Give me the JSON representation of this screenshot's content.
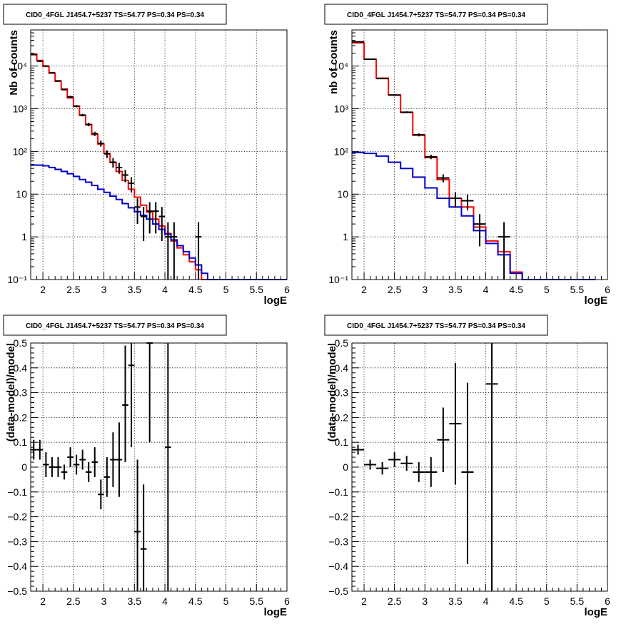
{
  "chart_data": [
    {
      "id": "top-left",
      "type": "line",
      "title": "CID0_4FGL J1454.7+5237 TS=54.77 PS=0.34 PS=0.34",
      "xlabel": "logE",
      "ylabel": "Nb of counts",
      "xlim": [
        1.8,
        6.0
      ],
      "ylim": [
        0.1,
        70000
      ],
      "yscale": "log",
      "grid": true,
      "xticks": [
        2,
        2.5,
        3,
        3.5,
        4,
        4.5,
        5,
        5.5,
        6
      ],
      "xtick_labels": [
        "2",
        "2.5",
        "3",
        "3.5",
        "4",
        "4.5",
        "5",
        "5.5",
        "6"
      ],
      "yticks": [
        0.1,
        1,
        10,
        100,
        1000,
        10000
      ],
      "ytick_labels": [
        "10⁻¹",
        "1",
        "10",
        "10²",
        "10³",
        "10⁴"
      ],
      "bin_edges": [
        1.8,
        1.9,
        2.0,
        2.1,
        2.2,
        2.3,
        2.4,
        2.5,
        2.6,
        2.7,
        2.8,
        2.9,
        3.0,
        3.1,
        3.2,
        3.3,
        3.4,
        3.5,
        3.6,
        3.7,
        3.8,
        3.9,
        4.0,
        4.1,
        4.2,
        4.3,
        4.4,
        4.5,
        4.6,
        4.7,
        4.8,
        4.9,
        5.0,
        5.1,
        5.2,
        5.3,
        5.4,
        5.5,
        5.6,
        5.7,
        5.8,
        5.9,
        6.0
      ],
      "series": [
        {
          "color": "#ff0000",
          "values": [
            19000,
            13500,
            9800,
            6800,
            4400,
            2900,
            1800,
            1150,
            700,
            420,
            250,
            150,
            90,
            55,
            34,
            21,
            13,
            8.5,
            5.5,
            3.8,
            2.6,
            1.8,
            1.2,
            0.8,
            0.55,
            0.38,
            0.26,
            0.17,
            0.1,
            0.1,
            0.1,
            0.1,
            0.1,
            0.1,
            0.1,
            0.1,
            0.1,
            0.1,
            0.1,
            0.1,
            0.1,
            0.1
          ]
        },
        {
          "color": "#0000cc",
          "values": [
            48,
            48,
            46,
            42,
            38,
            34,
            30,
            26,
            22,
            19,
            16,
            13,
            11,
            9,
            7.5,
            6,
            4.8,
            3.9,
            3.2,
            2.6,
            2.0,
            1.5,
            1.15,
            0.85,
            0.62,
            0.45,
            0.32,
            0.22,
            0.14,
            0.1,
            0.1,
            0.1,
            0.1,
            0.1,
            0.1,
            0.1,
            0.1,
            0.1,
            0.1,
            0.1,
            0.1,
            0.1
          ]
        }
      ],
      "points": [
        {
          "x": 1.85,
          "y": 18500,
          "xerr": 0.05,
          "ylo": 18000,
          "yhi": 19100
        },
        {
          "x": 1.95,
          "y": 13000,
          "xerr": 0.05,
          "ylo": 12600,
          "yhi": 13400
        },
        {
          "x": 2.05,
          "y": 10000,
          "xerr": 0.05,
          "ylo": 9700,
          "yhi": 10300
        },
        {
          "x": 2.15,
          "y": 7000,
          "xerr": 0.05,
          "ylo": 6800,
          "yhi": 7200
        },
        {
          "x": 2.25,
          "y": 4500,
          "xerr": 0.05,
          "ylo": 4350,
          "yhi": 4650
        },
        {
          "x": 2.35,
          "y": 2800,
          "xerr": 0.05,
          "ylo": 2700,
          "yhi": 2900
        },
        {
          "x": 2.45,
          "y": 1900,
          "xerr": 0.05,
          "ylo": 1800,
          "yhi": 2000
        },
        {
          "x": 2.55,
          "y": 1150,
          "xerr": 0.05,
          "ylo": 1080,
          "yhi": 1220
        },
        {
          "x": 2.65,
          "y": 710,
          "xerr": 0.05,
          "ylo": 660,
          "yhi": 760
        },
        {
          "x": 2.75,
          "y": 430,
          "xerr": 0.05,
          "ylo": 390,
          "yhi": 470
        },
        {
          "x": 2.85,
          "y": 260,
          "xerr": 0.05,
          "ylo": 230,
          "yhi": 290
        },
        {
          "x": 2.95,
          "y": 155,
          "xerr": 0.05,
          "ylo": 130,
          "yhi": 180
        },
        {
          "x": 3.05,
          "y": 88,
          "xerr": 0.05,
          "ylo": 70,
          "yhi": 106
        },
        {
          "x": 3.15,
          "y": 56,
          "xerr": 0.05,
          "ylo": 42,
          "yhi": 70
        },
        {
          "x": 3.25,
          "y": 42,
          "xerr": 0.05,
          "ylo": 30,
          "yhi": 54
        },
        {
          "x": 3.35,
          "y": 28,
          "xerr": 0.05,
          "ylo": 19,
          "yhi": 37
        },
        {
          "x": 3.45,
          "y": 18,
          "xerr": 0.05,
          "ylo": 11,
          "yhi": 25
        },
        {
          "x": 3.55,
          "y": 5,
          "xerr": 0.05,
          "ylo": 2,
          "yhi": 8
        },
        {
          "x": 3.65,
          "y": 3,
          "xerr": 0.05,
          "ylo": 0.8,
          "yhi": 5
        },
        {
          "x": 3.75,
          "y": 4,
          "xerr": 0.05,
          "ylo": 1.2,
          "yhi": 6.5
        },
        {
          "x": 3.85,
          "y": 4,
          "xerr": 0.05,
          "ylo": 1.2,
          "yhi": 6.5
        },
        {
          "x": 3.95,
          "y": 3,
          "xerr": 0.05,
          "ylo": 0.8,
          "yhi": 5
        },
        {
          "x": 4.05,
          "y": 1,
          "xerr": 0.05,
          "ylo": 0.1,
          "yhi": 2.2
        },
        {
          "x": 4.15,
          "y": 1,
          "xerr": 0.05,
          "ylo": 0.1,
          "yhi": 2.2
        },
        {
          "x": 4.55,
          "y": 1,
          "xerr": 0.05,
          "ylo": 0.1,
          "yhi": 2.2
        }
      ]
    },
    {
      "id": "top-right",
      "type": "line",
      "title": "CID0_4FGL J1454.7+5237 TS=54.77 PS=0.34 PS=0.34",
      "xlabel": "logE",
      "ylabel": "nb of counts",
      "xlim": [
        1.8,
        6.0
      ],
      "ylim": [
        0.1,
        70000
      ],
      "yscale": "log",
      "grid": true,
      "xticks": [
        2,
        2.5,
        3,
        3.5,
        4,
        4.5,
        5,
        5.5,
        6
      ],
      "xtick_labels": [
        "2",
        "2.5",
        "3",
        "3.5",
        "4",
        "4.5",
        "5",
        "5.5",
        "6"
      ],
      "yticks": [
        0.1,
        1,
        10,
        100,
        1000,
        10000
      ],
      "ytick_labels": [
        "10⁻¹",
        "1",
        "10",
        "10²",
        "10³",
        "10⁴"
      ],
      "bin_edges": [
        1.8,
        2.0,
        2.2,
        2.4,
        2.6,
        2.8,
        3.0,
        3.2,
        3.4,
        3.6,
        3.8,
        4.0,
        4.2,
        4.4,
        4.6,
        4.8,
        5.0,
        5.2,
        5.4,
        5.6,
        5.8,
        6.0
      ],
      "series": [
        {
          "color": "#ff0000",
          "values": [
            35000,
            14500,
            5200,
            2100,
            820,
            240,
            72,
            22,
            8,
            5,
            1.7,
            0.8,
            0.45,
            0.15,
            0.1,
            0.1,
            0.1,
            0.1,
            0.1,
            0.1
          ]
        },
        {
          "color": "#0000cc",
          "values": [
            95,
            90,
            78,
            56,
            40,
            25,
            14,
            8,
            5,
            3.1,
            1.4,
            0.7,
            0.38,
            0.14,
            0.1,
            0.1,
            0.1,
            0.1,
            0.1,
            0.1
          ]
        }
      ],
      "points": [
        {
          "x": 1.9,
          "y": 37000,
          "xerr": 0.1,
          "ylo": 36500,
          "yhi": 37500
        },
        {
          "x": 2.1,
          "y": 14500,
          "xerr": 0.1,
          "ylo": 14200,
          "yhi": 14800
        },
        {
          "x": 2.3,
          "y": 5100,
          "xerr": 0.1,
          "ylo": 4950,
          "yhi": 5250
        },
        {
          "x": 2.5,
          "y": 2100,
          "xerr": 0.1,
          "ylo": 2000,
          "yhi": 2200
        },
        {
          "x": 2.7,
          "y": 830,
          "xerr": 0.1,
          "ylo": 790,
          "yhi": 870
        },
        {
          "x": 2.9,
          "y": 245,
          "xerr": 0.1,
          "ylo": 225,
          "yhi": 265
        },
        {
          "x": 3.1,
          "y": 75,
          "xerr": 0.1,
          "ylo": 66,
          "yhi": 84
        },
        {
          "x": 3.3,
          "y": 24,
          "xerr": 0.1,
          "ylo": 19,
          "yhi": 29
        },
        {
          "x": 3.5,
          "y": 8,
          "xerr": 0.1,
          "ylo": 5,
          "yhi": 11
        },
        {
          "x": 3.7,
          "y": 7,
          "xerr": 0.1,
          "ylo": 4.2,
          "yhi": 9.8
        },
        {
          "x": 3.9,
          "y": 2,
          "xerr": 0.1,
          "ylo": 0.6,
          "yhi": 3.4
        },
        {
          "x": 4.3,
          "y": 1,
          "xerr": 0.1,
          "ylo": 0.1,
          "yhi": 2.2
        }
      ]
    },
    {
      "id": "bottom-left",
      "type": "scatter",
      "title": "CID0_4FGL J1454.7+5237 TS=54.77 PS=0.34 PS=0.34",
      "xlabel": "logE",
      "ylabel": "(data-model)/model",
      "xlim": [
        1.8,
        6.0
      ],
      "ylim": [
        -0.5,
        0.5
      ],
      "yscale": "linear",
      "grid": true,
      "xticks": [
        2,
        2.5,
        3,
        3.5,
        4,
        4.5,
        5,
        5.5,
        6
      ],
      "xtick_labels": [
        "2",
        "2.5",
        "3",
        "3.5",
        "4",
        "4.5",
        "5",
        "5.5",
        "6"
      ],
      "yticks": [
        -0.5,
        -0.4,
        -0.3,
        -0.2,
        -0.1,
        0,
        0.1,
        0.2,
        0.3,
        0.4,
        0.5
      ],
      "ytick_labels": [
        "−0.5",
        "−0.4",
        "−0.3",
        "−0.2",
        "−0.1",
        "0",
        "0.1",
        "0.2",
        "0.3",
        "0.4",
        "0.5"
      ],
      "points": [
        {
          "x": 1.85,
          "y": 0.07,
          "xerr": 0.05,
          "ylo": 0.03,
          "yhi": 0.11
        },
        {
          "x": 1.95,
          "y": 0.07,
          "xerr": 0.05,
          "ylo": 0.03,
          "yhi": 0.11
        },
        {
          "x": 2.05,
          "y": 0.01,
          "xerr": 0.05,
          "ylo": -0.04,
          "yhi": 0.06
        },
        {
          "x": 2.15,
          "y": 0.0,
          "xerr": 0.05,
          "ylo": -0.04,
          "yhi": 0.04
        },
        {
          "x": 2.25,
          "y": 0.0,
          "xerr": 0.05,
          "ylo": -0.04,
          "yhi": 0.04
        },
        {
          "x": 2.35,
          "y": -0.02,
          "xerr": 0.05,
          "ylo": -0.05,
          "yhi": 0.01
        },
        {
          "x": 2.45,
          "y": 0.04,
          "xerr": 0.05,
          "ylo": 0.0,
          "yhi": 0.08
        },
        {
          "x": 2.55,
          "y": 0.01,
          "xerr": 0.05,
          "ylo": -0.03,
          "yhi": 0.05
        },
        {
          "x": 2.65,
          "y": 0.03,
          "xerr": 0.05,
          "ylo": -0.01,
          "yhi": 0.07
        },
        {
          "x": 2.75,
          "y": -0.02,
          "xerr": 0.05,
          "ylo": -0.06,
          "yhi": 0.02
        },
        {
          "x": 2.85,
          "y": 0.02,
          "xerr": 0.05,
          "ylo": -0.04,
          "yhi": 0.08
        },
        {
          "x": 2.95,
          "y": -0.11,
          "xerr": 0.05,
          "ylo": -0.17,
          "yhi": -0.05
        },
        {
          "x": 3.05,
          "y": -0.04,
          "xerr": 0.05,
          "ylo": -0.12,
          "yhi": 0.04
        },
        {
          "x": 3.15,
          "y": 0.03,
          "xerr": 0.05,
          "ylo": -0.08,
          "yhi": 0.14
        },
        {
          "x": 3.25,
          "y": 0.03,
          "xerr": 0.05,
          "ylo": -0.12,
          "yhi": 0.18
        },
        {
          "x": 3.35,
          "y": 0.25,
          "xerr": 0.05,
          "ylo": 0.02,
          "yhi": 0.49
        },
        {
          "x": 3.45,
          "y": 0.41,
          "xerr": 0.05,
          "ylo": 0.08,
          "yhi": 0.5
        },
        {
          "x": 3.55,
          "y": -0.26,
          "xerr": 0.05,
          "ylo": -0.5,
          "yhi": 0.03
        },
        {
          "x": 3.65,
          "y": -0.33,
          "xerr": 0.05,
          "ylo": -0.5,
          "yhi": -0.07
        },
        {
          "x": 3.75,
          "y": 0.5,
          "xerr": 0.05,
          "ylo": 0.1,
          "yhi": 0.5
        },
        {
          "x": 4.05,
          "y": 0.08,
          "xerr": 0.05,
          "ylo": -0.5,
          "yhi": 0.5
        }
      ]
    },
    {
      "id": "bottom-right",
      "type": "scatter",
      "title": "CID0_4FGL J1454.7+5237 TS=54.77 PS=0.34 PS=0.34",
      "xlabel": "logE",
      "ylabel": "(data-model)/model",
      "xlim": [
        1.8,
        6.0
      ],
      "ylim": [
        -0.5,
        0.5
      ],
      "yscale": "linear",
      "grid": true,
      "xticks": [
        2,
        2.5,
        3,
        3.5,
        4,
        4.5,
        5,
        5.5,
        6
      ],
      "xtick_labels": [
        "2",
        "2.5",
        "3",
        "3.5",
        "4",
        "4.5",
        "5",
        "5.5",
        "6"
      ],
      "yticks": [
        -0.5,
        -0.4,
        -0.3,
        -0.2,
        -0.1,
        0,
        0.1,
        0.2,
        0.3,
        0.4,
        0.5
      ],
      "ytick_labels": [
        "−0.5",
        "−0.4",
        "−0.3",
        "−0.2",
        "−0.1",
        "0",
        "0.1",
        "0.2",
        "0.3",
        "0.4",
        "0.5"
      ],
      "points": [
        {
          "x": 1.9,
          "y": 0.07,
          "xerr": 0.1,
          "ylo": 0.05,
          "yhi": 0.09
        },
        {
          "x": 2.1,
          "y": 0.01,
          "xerr": 0.1,
          "ylo": -0.01,
          "yhi": 0.03
        },
        {
          "x": 2.3,
          "y": -0.005,
          "xerr": 0.1,
          "ylo": -0.03,
          "yhi": 0.02
        },
        {
          "x": 2.5,
          "y": 0.03,
          "xerr": 0.1,
          "ylo": 0.0,
          "yhi": 0.06
        },
        {
          "x": 2.7,
          "y": 0.015,
          "xerr": 0.1,
          "ylo": -0.015,
          "yhi": 0.045
        },
        {
          "x": 2.9,
          "y": -0.02,
          "xerr": 0.1,
          "ylo": -0.06,
          "yhi": 0.02
        },
        {
          "x": 3.1,
          "y": -0.02,
          "xerr": 0.1,
          "ylo": -0.08,
          "yhi": 0.04
        },
        {
          "x": 3.3,
          "y": 0.11,
          "xerr": 0.1,
          "ylo": -0.02,
          "yhi": 0.24
        },
        {
          "x": 3.5,
          "y": 0.175,
          "xerr": 0.1,
          "ylo": -0.07,
          "yhi": 0.42
        },
        {
          "x": 3.7,
          "y": -0.02,
          "xerr": 0.1,
          "ylo": -0.39,
          "yhi": 0.34
        },
        {
          "x": 4.1,
          "y": 0.335,
          "xerr": 0.1,
          "ylo": -0.5,
          "yhi": 0.5
        }
      ]
    }
  ]
}
